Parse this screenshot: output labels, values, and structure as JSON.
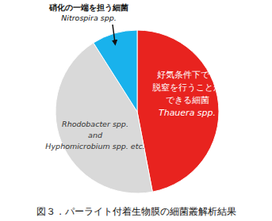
{
  "chart_data": {
    "type": "pie",
    "title": "図３．パーライト付着生物膜の細菌叢解析結果",
    "categories": [
      [
        "好気条件下でも",
        "脱窒を行うことが",
        "できる細菌",
        "Thauera spp."
      ],
      [
        "Rhodobacter spp.",
        "and",
        "Hyphomicrobium spp. etc."
      ],
      [
        "硝化の一端を担う細菌",
        "Nitrospira spp."
      ]
    ],
    "values": [
      47,
      44,
      9
    ],
    "colors": [
      "#e8231f",
      "#d9d9d9",
      "#19b2ec"
    ]
  }
}
